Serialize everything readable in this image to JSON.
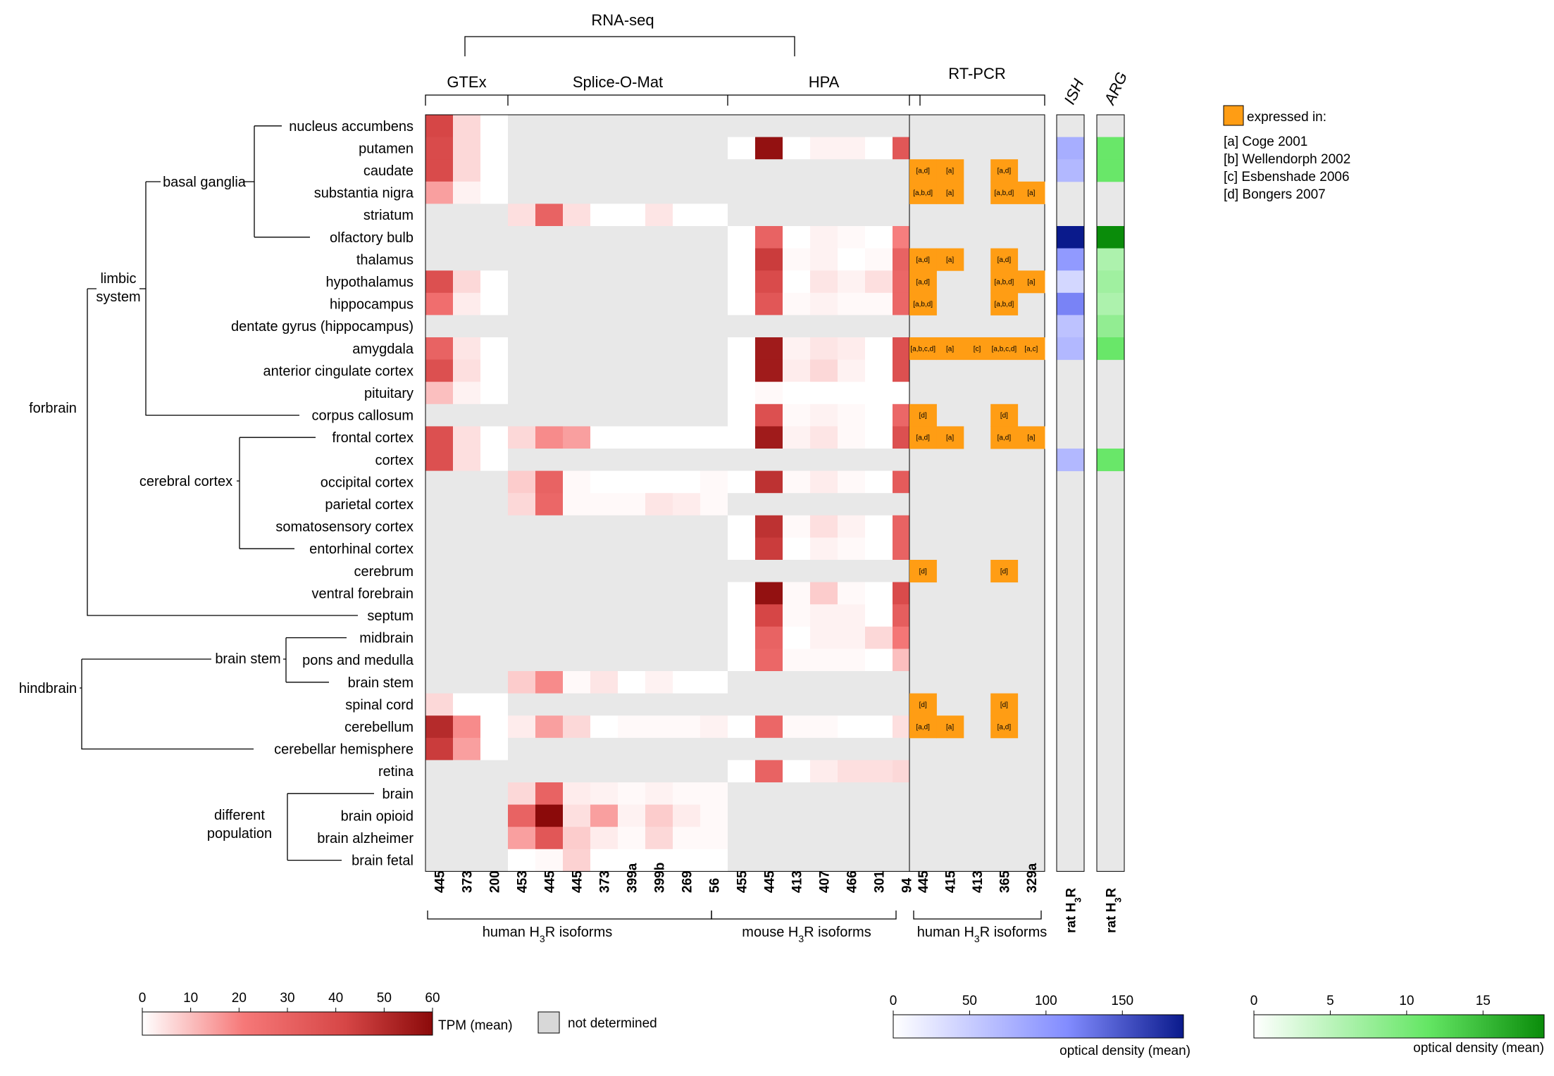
{
  "chart_data": {
    "type": "heatmap",
    "title": "RNA-seq",
    "rows": [
      "nucleus accumbens",
      "putamen",
      "caudate",
      "substantia nigra",
      "striatum",
      "olfactory bulb",
      "thalamus",
      "hypothalamus",
      "hippocampus",
      "dentate gyrus (hippocampus)",
      "amygdala",
      "anterior cingulate cortex",
      "pituitary",
      "corpus callosum",
      "frontal cortex",
      "cortex",
      "occipital cortex",
      "parietal cortex",
      "somatosensory cortex",
      "entorhinal cortex",
      "cerebrum",
      "ventral forebrain",
      "septum",
      "midbrain",
      "pons and medulla",
      "brain stem",
      "spinal cord",
      "cerebellum",
      "cerebellar hemisphere",
      "retina",
      "brain",
      "brain opioid",
      "brain alzheimer",
      "brain fetal"
    ],
    "groups": [
      {
        "name": "GTEx",
        "columns": [
          "445",
          "373",
          "200"
        ],
        "values": [
          [
            42,
            6,
            0
          ],
          [
            40,
            6,
            0
          ],
          [
            40,
            6,
            0
          ],
          [
            15,
            2,
            0
          ],
          [
            null,
            null,
            null
          ],
          [
            null,
            null,
            null
          ],
          [
            null,
            null,
            null
          ],
          [
            38,
            6,
            0
          ],
          [
            25,
            3,
            0
          ],
          [
            null,
            null,
            null
          ],
          [
            30,
            4,
            0
          ],
          [
            38,
            5,
            0
          ],
          [
            10,
            2,
            0
          ],
          [
            null,
            null,
            null
          ],
          [
            38,
            5,
            0
          ],
          [
            38,
            5,
            0
          ],
          [
            null,
            null,
            null
          ],
          [
            null,
            null,
            null
          ],
          [
            null,
            null,
            null
          ],
          [
            null,
            null,
            null
          ],
          [
            null,
            null,
            null
          ],
          [
            null,
            null,
            null
          ],
          [
            null,
            null,
            null
          ],
          [
            null,
            null,
            null
          ],
          [
            null,
            null,
            null
          ],
          [
            null,
            null,
            null
          ],
          [
            6,
            0,
            0
          ],
          [
            50,
            18,
            0
          ],
          [
            45,
            15,
            0
          ],
          [
            null,
            null,
            null
          ],
          [
            null,
            null,
            null
          ],
          [
            null,
            null,
            null
          ],
          [
            null,
            null,
            null
          ],
          [
            null,
            null,
            null
          ]
        ]
      },
      {
        "name": "Splice-O-Mat",
        "columns": [
          "453",
          "445",
          "445",
          "373",
          "399a",
          "399b",
          "269",
          "56"
        ],
        "values": [
          [
            null,
            null,
            null,
            null,
            null,
            null,
            null,
            null
          ],
          [
            null,
            null,
            null,
            null,
            null,
            null,
            null,
            null
          ],
          [
            null,
            null,
            null,
            null,
            null,
            null,
            null,
            null
          ],
          [
            null,
            null,
            null,
            null,
            null,
            null,
            null,
            null
          ],
          [
            5,
            30,
            5,
            0,
            0,
            4,
            0,
            0
          ],
          [
            null,
            null,
            null,
            null,
            null,
            null,
            null,
            null
          ],
          [
            null,
            null,
            null,
            null,
            null,
            null,
            null,
            null
          ],
          [
            null,
            null,
            null,
            null,
            null,
            null,
            null,
            null
          ],
          [
            null,
            null,
            null,
            null,
            null,
            null,
            null,
            null
          ],
          [
            null,
            null,
            null,
            null,
            null,
            null,
            null,
            null
          ],
          [
            null,
            null,
            null,
            null,
            null,
            null,
            null,
            null
          ],
          [
            null,
            null,
            null,
            null,
            null,
            null,
            null,
            null
          ],
          [
            null,
            null,
            null,
            null,
            null,
            null,
            null,
            null
          ],
          [
            null,
            null,
            null,
            null,
            null,
            null,
            null,
            null
          ],
          [
            6,
            18,
            15,
            0,
            0,
            0,
            0,
            0
          ],
          [
            null,
            null,
            null,
            null,
            null,
            null,
            null,
            null
          ],
          [
            8,
            30,
            1,
            0,
            0,
            0,
            0,
            1
          ],
          [
            6,
            28,
            1,
            1,
            1,
            4,
            3,
            1
          ],
          [
            null,
            null,
            null,
            null,
            null,
            null,
            null,
            null
          ],
          [
            null,
            null,
            null,
            null,
            null,
            null,
            null,
            null
          ],
          [
            null,
            null,
            null,
            null,
            null,
            null,
            null,
            null
          ],
          [
            null,
            null,
            null,
            null,
            null,
            null,
            null,
            null
          ],
          [
            null,
            null,
            null,
            null,
            null,
            null,
            null,
            null
          ],
          [
            null,
            null,
            null,
            null,
            null,
            null,
            null,
            null
          ],
          [
            null,
            null,
            null,
            null,
            null,
            null,
            null,
            null
          ],
          [
            8,
            18,
            1,
            4,
            0,
            2,
            0,
            0
          ],
          [
            null,
            null,
            null,
            null,
            null,
            null,
            null,
            null
          ],
          [
            3,
            15,
            6,
            0,
            1,
            1,
            1,
            2
          ],
          [
            null,
            null,
            null,
            null,
            null,
            null,
            null,
            null
          ],
          [
            null,
            null,
            null,
            null,
            null,
            null,
            null,
            null
          ],
          [
            6,
            30,
            3,
            2,
            1,
            2,
            1,
            1
          ],
          [
            30,
            60,
            5,
            15,
            2,
            8,
            3,
            1
          ],
          [
            15,
            35,
            8,
            3,
            1,
            6,
            1,
            1
          ],
          [
            0,
            1,
            7,
            0,
            0,
            0,
            0,
            0
          ]
        ]
      },
      {
        "name": "HPA",
        "columns": [
          "455",
          "445",
          "413",
          "407",
          "466",
          "301",
          "94"
        ],
        "values": [
          [
            null,
            null,
            null,
            null,
            null,
            null,
            null
          ],
          [
            0,
            58,
            0,
            2,
            2,
            0,
            35
          ],
          [
            null,
            null,
            null,
            null,
            null,
            null,
            null
          ],
          [
            null,
            null,
            null,
            null,
            null,
            null,
            null
          ],
          [
            null,
            null,
            null,
            null,
            null,
            null,
            null
          ],
          [
            0,
            30,
            0,
            2,
            1,
            0,
            20
          ],
          [
            0,
            45,
            1,
            2,
            0,
            1,
            30
          ],
          [
            0,
            40,
            0,
            4,
            2,
            5,
            28
          ],
          [
            0,
            35,
            1,
            2,
            1,
            1,
            28
          ],
          [
            null,
            null,
            null,
            null,
            null,
            null,
            null
          ],
          [
            0,
            55,
            2,
            4,
            3,
            0,
            38
          ],
          [
            0,
            55,
            3,
            6,
            2,
            0,
            38
          ],
          [
            0,
            1,
            0,
            0,
            0,
            0,
            0
          ],
          [
            0,
            38,
            1,
            2,
            1,
            0,
            28
          ],
          [
            0,
            55,
            2,
            4,
            1,
            0,
            38
          ],
          [
            null,
            null,
            null,
            null,
            null,
            null,
            null
          ],
          [
            0,
            48,
            1,
            3,
            1,
            0,
            33
          ],
          [
            null,
            null,
            null,
            null,
            null,
            null,
            null
          ],
          [
            0,
            48,
            1,
            5,
            2,
            0,
            30
          ],
          [
            0,
            45,
            0,
            2,
            1,
            0,
            30
          ],
          [
            null,
            null,
            null,
            null,
            null,
            null,
            null
          ],
          [
            0,
            58,
            1,
            8,
            1,
            0,
            40
          ],
          [
            0,
            42,
            1,
            2,
            2,
            0,
            32
          ],
          [
            0,
            30,
            0,
            2,
            2,
            6,
            22
          ],
          [
            0,
            28,
            1,
            1,
            1,
            0,
            10
          ],
          [
            null,
            null,
            null,
            null,
            null,
            null,
            null
          ],
          [
            null,
            null,
            null,
            null,
            null,
            null,
            null
          ],
          [
            0,
            28,
            1,
            1,
            0,
            0,
            5
          ],
          [
            null,
            null,
            null,
            null,
            null,
            null,
            null
          ],
          [
            0,
            30,
            0,
            3,
            5,
            5,
            6
          ],
          [
            null,
            null,
            null,
            null,
            null,
            null,
            null
          ],
          [
            null,
            null,
            null,
            null,
            null,
            null,
            null
          ],
          [
            null,
            null,
            null,
            null,
            null,
            null,
            null
          ],
          [
            null,
            null,
            null,
            null,
            null,
            null,
            null
          ]
        ]
      }
    ],
    "tpm_scale": {
      "min": 0,
      "max": 60,
      "ticks": [
        0,
        10,
        20,
        30,
        40,
        50,
        60
      ],
      "label": "TPM (mean)"
    },
    "not_determined_label": "not determined",
    "rtpcr": {
      "title": "RT-PCR",
      "columns": [
        "445",
        "415",
        "413",
        "365",
        "329a"
      ],
      "cells": [
        {
          "row": "caudate",
          "col": 0,
          "text": "[a,d]"
        },
        {
          "row": "caudate",
          "col": 1,
          "text": "[a]"
        },
        {
          "row": "caudate",
          "col": 3,
          "text": "[a,d]"
        },
        {
          "row": "substantia nigra",
          "col": 0,
          "text": "[a,b,d]"
        },
        {
          "row": "substantia nigra",
          "col": 1,
          "text": "[a]"
        },
        {
          "row": "substantia nigra",
          "col": 3,
          "text": "[a,b,d]"
        },
        {
          "row": "substantia nigra",
          "col": 4,
          "text": "[a]"
        },
        {
          "row": "thalamus",
          "col": 0,
          "text": "[a,d]"
        },
        {
          "row": "thalamus",
          "col": 1,
          "text": "[a]"
        },
        {
          "row": "thalamus",
          "col": 3,
          "text": "[a,d]"
        },
        {
          "row": "hypothalamus",
          "col": 0,
          "text": "[a,d]"
        },
        {
          "row": "hypothalamus",
          "col": 3,
          "text": "[a,b,d]"
        },
        {
          "row": "hypothalamus",
          "col": 4,
          "text": "[a]"
        },
        {
          "row": "hippocampus",
          "col": 0,
          "text": "[a,b,d]"
        },
        {
          "row": "hippocampus",
          "col": 3,
          "text": "[a,b,d]"
        },
        {
          "row": "amygdala",
          "col": 0,
          "text": "[a,b,c,d]"
        },
        {
          "row": "amygdala",
          "col": 1,
          "text": "[a]"
        },
        {
          "row": "amygdala",
          "col": 2,
          "text": "[c]"
        },
        {
          "row": "amygdala",
          "col": 3,
          "text": "[a,b,c,d]"
        },
        {
          "row": "amygdala",
          "col": 4,
          "text": "[a,c]"
        },
        {
          "row": "corpus callosum",
          "col": 0,
          "text": "[d]"
        },
        {
          "row": "corpus callosum",
          "col": 3,
          "text": "[d]"
        },
        {
          "row": "frontal cortex",
          "col": 0,
          "text": "[a,d]"
        },
        {
          "row": "frontal cortex",
          "col": 1,
          "text": "[a]"
        },
        {
          "row": "frontal cortex",
          "col": 3,
          "text": "[a,d]"
        },
        {
          "row": "frontal cortex",
          "col": 4,
          "text": "[a]"
        },
        {
          "row": "cerebrum",
          "col": 0,
          "text": "[d]"
        },
        {
          "row": "cerebrum",
          "col": 3,
          "text": "[d]"
        },
        {
          "row": "spinal cord",
          "col": 0,
          "text": "[d]"
        },
        {
          "row": "spinal cord",
          "col": 3,
          "text": "[d]"
        },
        {
          "row": "cerebellum",
          "col": 0,
          "text": "[a,d]"
        },
        {
          "row": "cerebellum",
          "col": 1,
          "text": "[a]"
        },
        {
          "row": "cerebellum",
          "col": 3,
          "text": "[a,d]"
        }
      ]
    },
    "ish": {
      "title": "ISH",
      "column": "rat H3R",
      "max": 190,
      "ticks": [
        0,
        50,
        100,
        150
      ],
      "label": "optical density (mean)",
      "values": {
        "putamen": 80,
        "caudate": 70,
        "olfactory bulb": 190,
        "thalamus": 100,
        "hypothalamus": 40,
        "hippocampus": 120,
        "dentate gyrus (hippocampus)": 60,
        "amygdala": 70,
        "cortex": 70
      }
    },
    "arg": {
      "title": "ARG",
      "column": "rat H3R",
      "max": 19,
      "ticks": [
        0,
        5,
        10,
        15
      ],
      "label": "optical density (mean)",
      "values": {
        "putamen": 11,
        "caudate": 11,
        "olfactory bulb": 19,
        "thalamus": 6,
        "hypothalamus": 7,
        "hippocampus": 6,
        "dentate gyrus (hippocampus)": 8,
        "amygdala": 11,
        "cortex": 11
      }
    },
    "column_group_labels": [
      "human H3R isoforms",
      "mouse H3R isoforms",
      "human H3R isoforms"
    ],
    "hierarchy": {
      "forbrain": "forbrain",
      "limbic": "limbic system",
      "basal": "basal ganglia",
      "cerebral": "cerebral cortex",
      "hindbrain": "hindbrain",
      "brainstem": "brain stem",
      "different": "different population"
    },
    "legend": {
      "title": "expressed in:",
      "refs": [
        "[a] Coge 2001",
        "[b] Wellendorph 2002",
        "[c] Esbenshade 2006",
        "[d] Bongers 2007"
      ]
    },
    "colors": {
      "red_max": "#8b0a0a",
      "red_mid": "#f06a6a",
      "na": "#e8e8e8",
      "orange": "#ff9d14",
      "blue_max": "#0a1a8c",
      "green_max": "#0a8c0a"
    }
  }
}
